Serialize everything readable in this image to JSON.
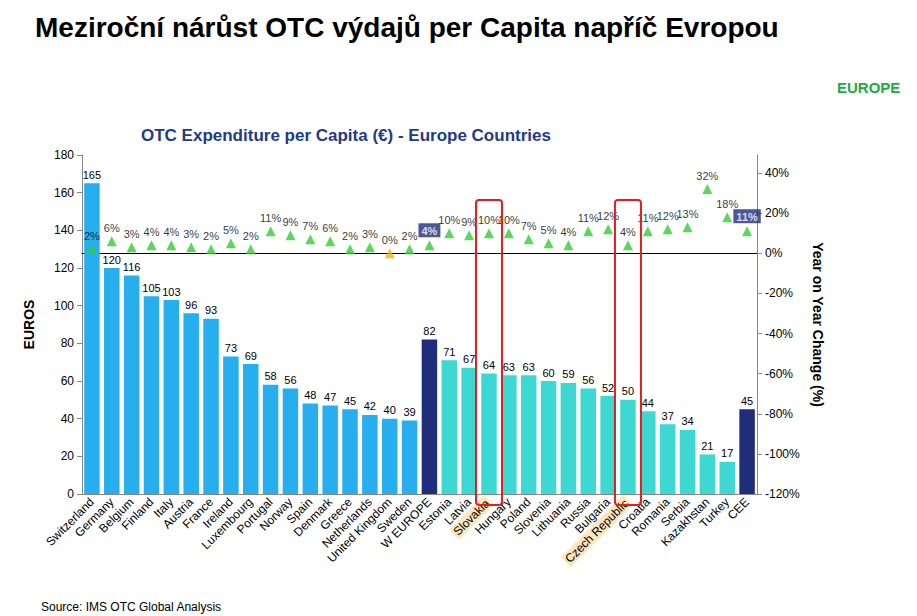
{
  "chart_data": {
    "type": "bar",
    "title": "Meziroční nárůst OTC výdajů per Capita napříč Evropou",
    "subtitle": "OTC Expenditure per Capita (€) - Europe Countries",
    "annotations": [
      "EUROPE",
      "Source: IMS OTC Global Analysis"
    ],
    "ylabel": "EUROS",
    "y2label": "Year on Year Change (%)",
    "categories": [
      "Switzerland",
      "Germany",
      "Belgium",
      "Finland",
      "Italy",
      "Austria",
      "France",
      "Ireland",
      "Luxembourg",
      "Portugal",
      "Norway",
      "Spain",
      "Denmark",
      "Greece",
      "Netherlands",
      "United Kingdom",
      "Sweden",
      "W EUROPE",
      "Estonia",
      "Latvia",
      "Slovakia",
      "Hungary",
      "Poland",
      "Slovenia",
      "Lithuania",
      "Russia",
      "Bulgaria",
      "Czech Republic",
      "Croatia",
      "Romania",
      "Serbia",
      "Kazakhstan",
      "Turkey",
      "CEE"
    ],
    "series": [
      {
        "type": "bar",
        "data_labels": true,
        "values": [
          165,
          120,
          116,
          105,
          103,
          96,
          93,
          73,
          69,
          58,
          56,
          48,
          47,
          45,
          42,
          40,
          39,
          82,
          71,
          67,
          64,
          63,
          63,
          60,
          59,
          56,
          52,
          50,
          44,
          37,
          34,
          21,
          17,
          45
        ],
        "colors": [
          "#27AEEF",
          "#27AEEF",
          "#27AEEF",
          "#27AEEF",
          "#27AEEF",
          "#27AEEF",
          "#27AEEF",
          "#27AEEF",
          "#27AEEF",
          "#27AEEF",
          "#27AEEF",
          "#27AEEF",
          "#27AEEF",
          "#27AEEF",
          "#27AEEF",
          "#27AEEF",
          "#27AEEF",
          "#1F2D7B",
          "#3ED8D2",
          "#3ED8D2",
          "#3ED8D2",
          "#3ED8D2",
          "#3ED8D2",
          "#3ED8D2",
          "#3ED8D2",
          "#3ED8D2",
          "#3ED8D2",
          "#3ED8D2",
          "#3ED8D2",
          "#3ED8D2",
          "#3ED8D2",
          "#3ED8D2",
          "#3ED8D2",
          "#1F2D7B"
        ]
      },
      {
        "type": "scatter",
        "marker": "triangle",
        "axis": "y2",
        "data_labels": true,
        "values": [
          2,
          6,
          3,
          4,
          4,
          3,
          2,
          5,
          2,
          11,
          9,
          7,
          6,
          2,
          3,
          0,
          2,
          4,
          10,
          9,
          10,
          10,
          7,
          5,
          4,
          11,
          12,
          4,
          11,
          12,
          13,
          32,
          18,
          11
        ],
        "value_labels": [
          "2%",
          "6%",
          "3%",
          "4%",
          "4%",
          "3%",
          "2%",
          "5%",
          "2%",
          "11%",
          "9%",
          "7%",
          "6%",
          "2%",
          "3%",
          "0%",
          "2%",
          "4%",
          "10%",
          "9%",
          "10%",
          "10%",
          "7%",
          "5%",
          "4%",
          "11%",
          "12%",
          "4%",
          "11%",
          "12%",
          "13%",
          "32%",
          "18%",
          "11%"
        ],
        "colors": [
          "#33CC33",
          "#33CC33",
          "#33CC33",
          "#33CC33",
          "#33CC33",
          "#33CC33",
          "#33CC33",
          "#33CC33",
          "#33CC33",
          "#33CC33",
          "#33CC33",
          "#33CC33",
          "#33CC33",
          "#33CC33",
          "#33CC33",
          "#F0B400",
          "#33CC33",
          "#33CC33",
          "#33CC33",
          "#33CC33",
          "#33CC33",
          "#33CC33",
          "#33CC33",
          "#33CC33",
          "#33CC33",
          "#33CC33",
          "#33CC33",
          "#33CC33",
          "#33CC33",
          "#33CC33",
          "#33CC33",
          "#33CC33",
          "#33CC33",
          "#33CC33"
        ]
      }
    ],
    "ylim": [
      0,
      180
    ],
    "yticks": [
      0,
      20,
      40,
      60,
      80,
      100,
      120,
      140,
      160,
      180
    ],
    "y2lim": [
      -120,
      49
    ],
    "y2ticks": [
      {
        "value": -120,
        "label": "-120%"
      },
      {
        "value": -100,
        "label": "-100%"
      },
      {
        "value": -80,
        "label": "-80%"
      },
      {
        "value": -60,
        "label": "-60%"
      },
      {
        "value": -40,
        "label": "-40%"
      },
      {
        "value": -20,
        "label": "-20%"
      },
      {
        "value": 0,
        "label": "0%"
      },
      {
        "value": 20,
        "label": "20%"
      },
      {
        "value": 40,
        "label": "40%"
      }
    ],
    "grid": false
  }
}
